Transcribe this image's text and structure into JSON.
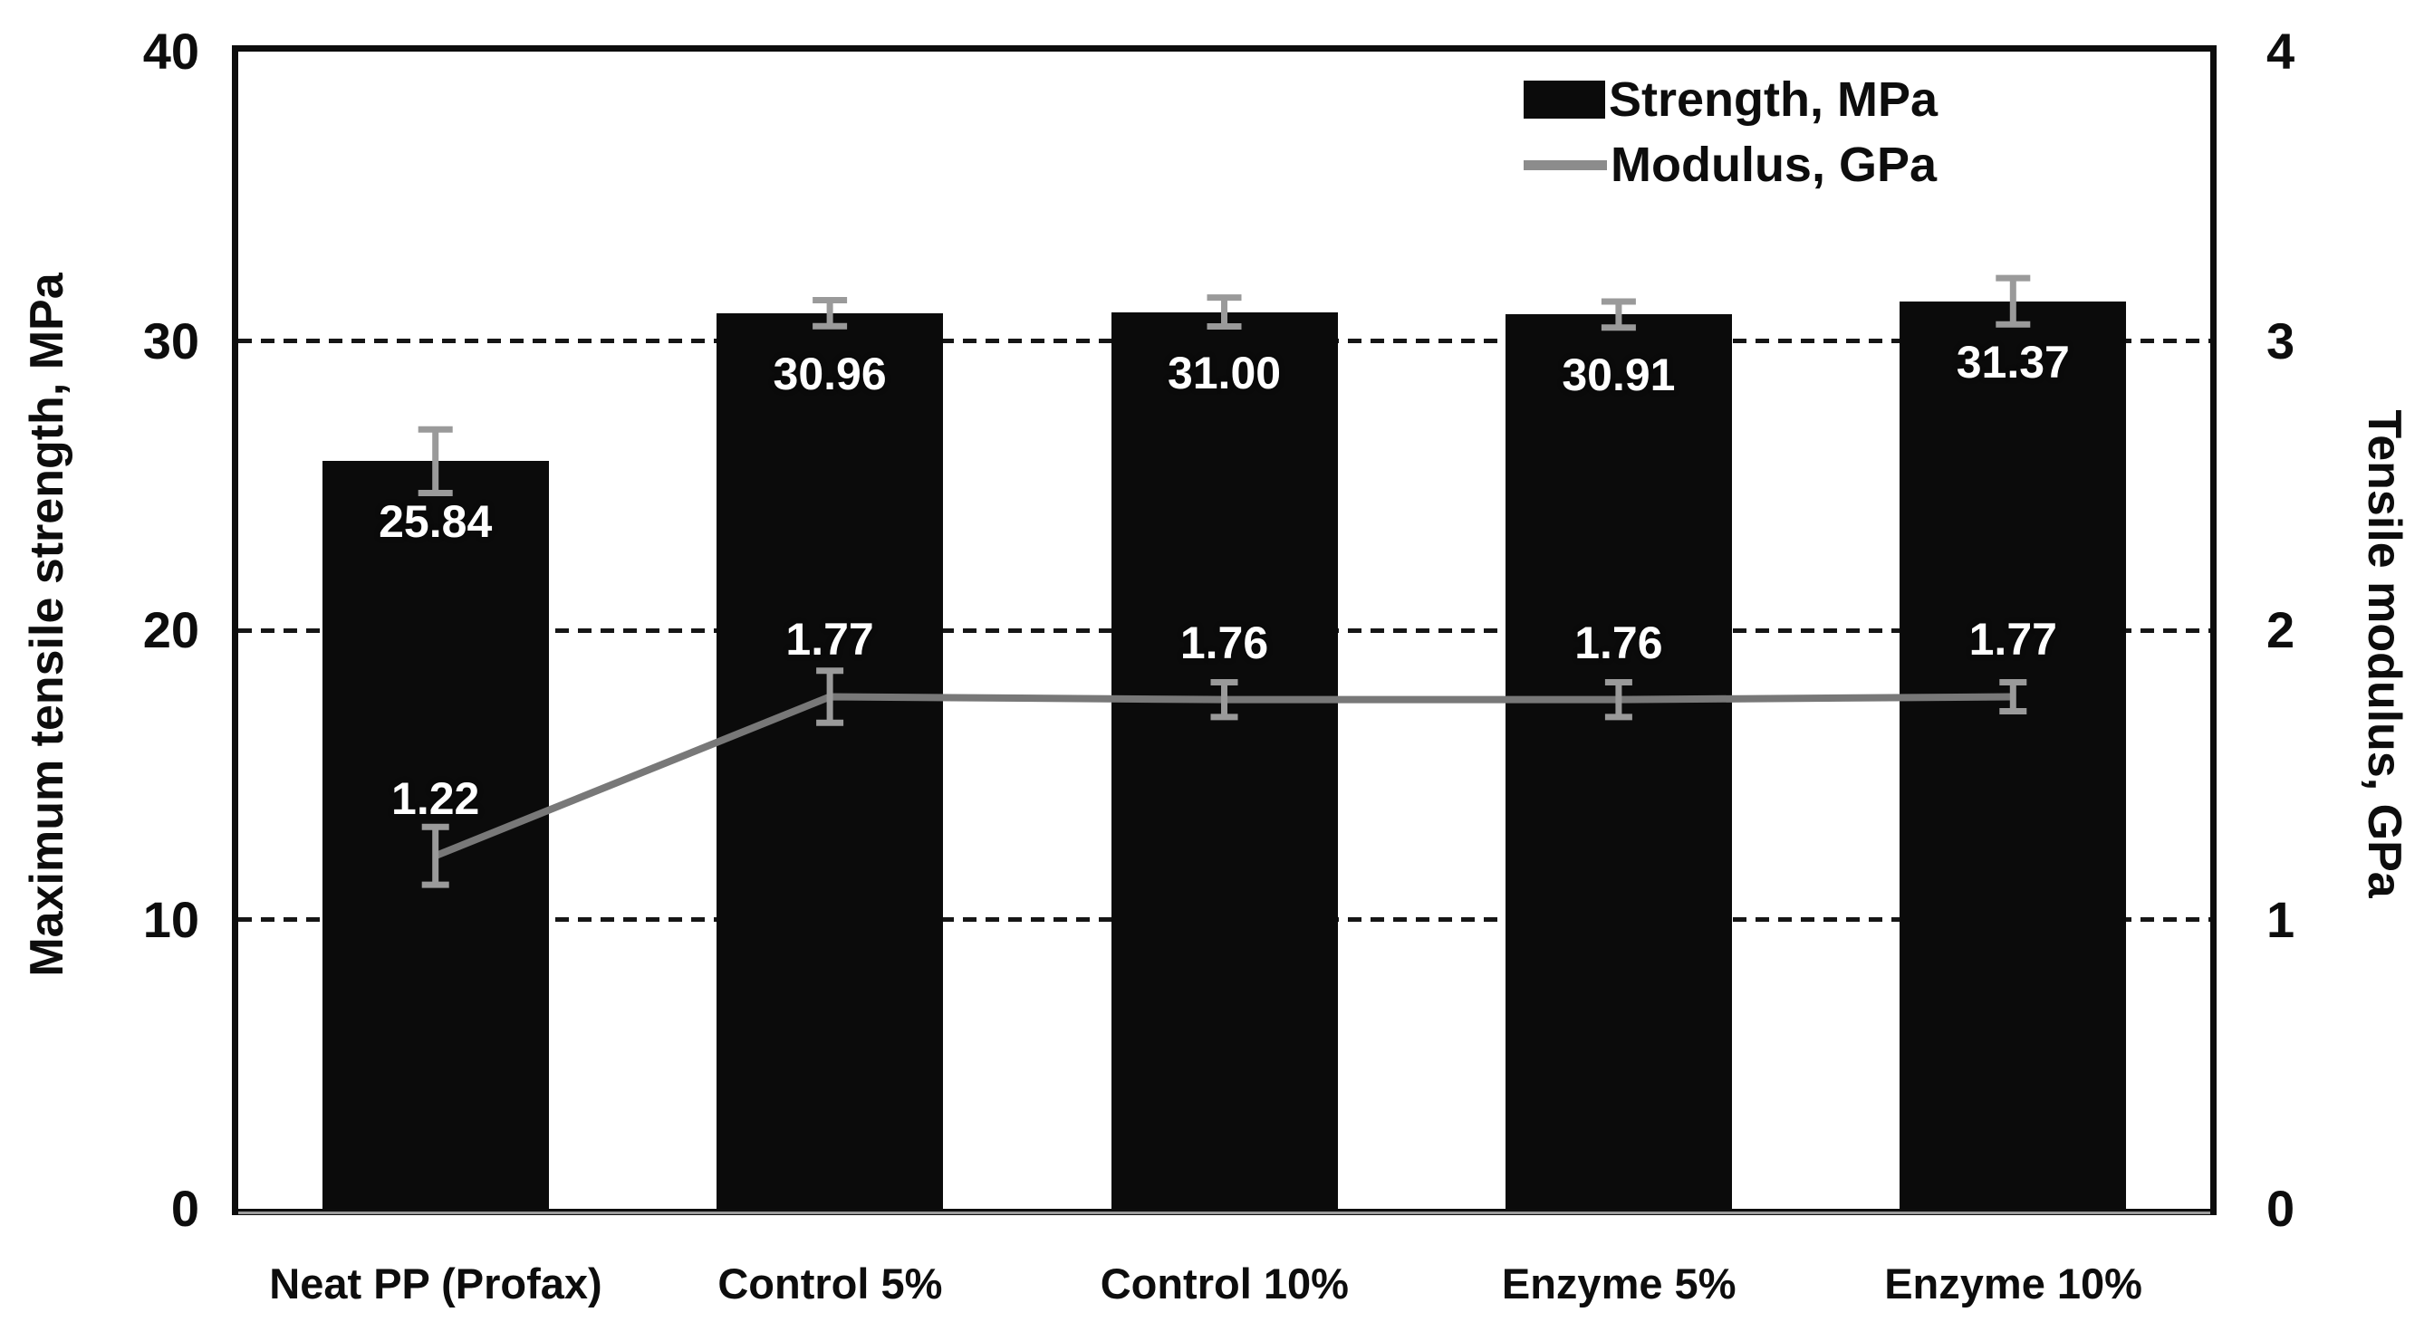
{
  "chart_data": {
    "type": "bar",
    "subtype": "bar-and-line-dual-axis",
    "categories": [
      "Neat PP (Profax)",
      "Control 5%",
      "Control 10%",
      "Enzyme 5%",
      "Enzyme 10%"
    ],
    "series": [
      {
        "name": "Strength, MPa",
        "type": "bar",
        "axis": "left",
        "values": [
          25.84,
          30.96,
          31.0,
          30.91,
          31.37
        ],
        "labels": [
          "25.84",
          "30.96",
          "31.00",
          "30.91",
          "31.37"
        ],
        "error": [
          1.1,
          0.45,
          0.5,
          0.45,
          0.8
        ]
      },
      {
        "name": "Modulus, GPa",
        "type": "line",
        "axis": "right",
        "values": [
          1.22,
          1.77,
          1.76,
          1.76,
          1.77
        ],
        "labels": [
          "1.22",
          "1.77",
          "1.76",
          "1.76",
          "1.77"
        ],
        "error": [
          0.1,
          0.09,
          0.06,
          0.06,
          0.05
        ]
      }
    ],
    "left_axis": {
      "label": "Maximum tensile strength, MPa",
      "min": 0,
      "max": 40,
      "ticks": [
        "0",
        "10",
        "20",
        "30",
        "40"
      ],
      "tick_values": [
        0,
        10,
        20,
        30,
        40
      ]
    },
    "right_axis": {
      "label": "Tensile modulus, GPa",
      "min": 0,
      "max": 4,
      "ticks": [
        "0",
        "1",
        "2",
        "3",
        "4"
      ],
      "tick_values": [
        0,
        1,
        2,
        3,
        4
      ]
    },
    "gridlines": [
      10,
      20,
      30
    ],
    "grid_on": true,
    "legend": {
      "position": "top-right-inside",
      "items": [
        {
          "label": "Strength, MPa",
          "swatch": "bar"
        },
        {
          "label": "Modulus, GPa",
          "swatch": "line"
        }
      ]
    },
    "colors": {
      "bar": "#0b0b0b",
      "line": "#787878",
      "error_bar": "#9a9a9a",
      "value_label": "#ffffff",
      "axis_text": "#0d0d0d",
      "background": "#ffffff"
    }
  }
}
